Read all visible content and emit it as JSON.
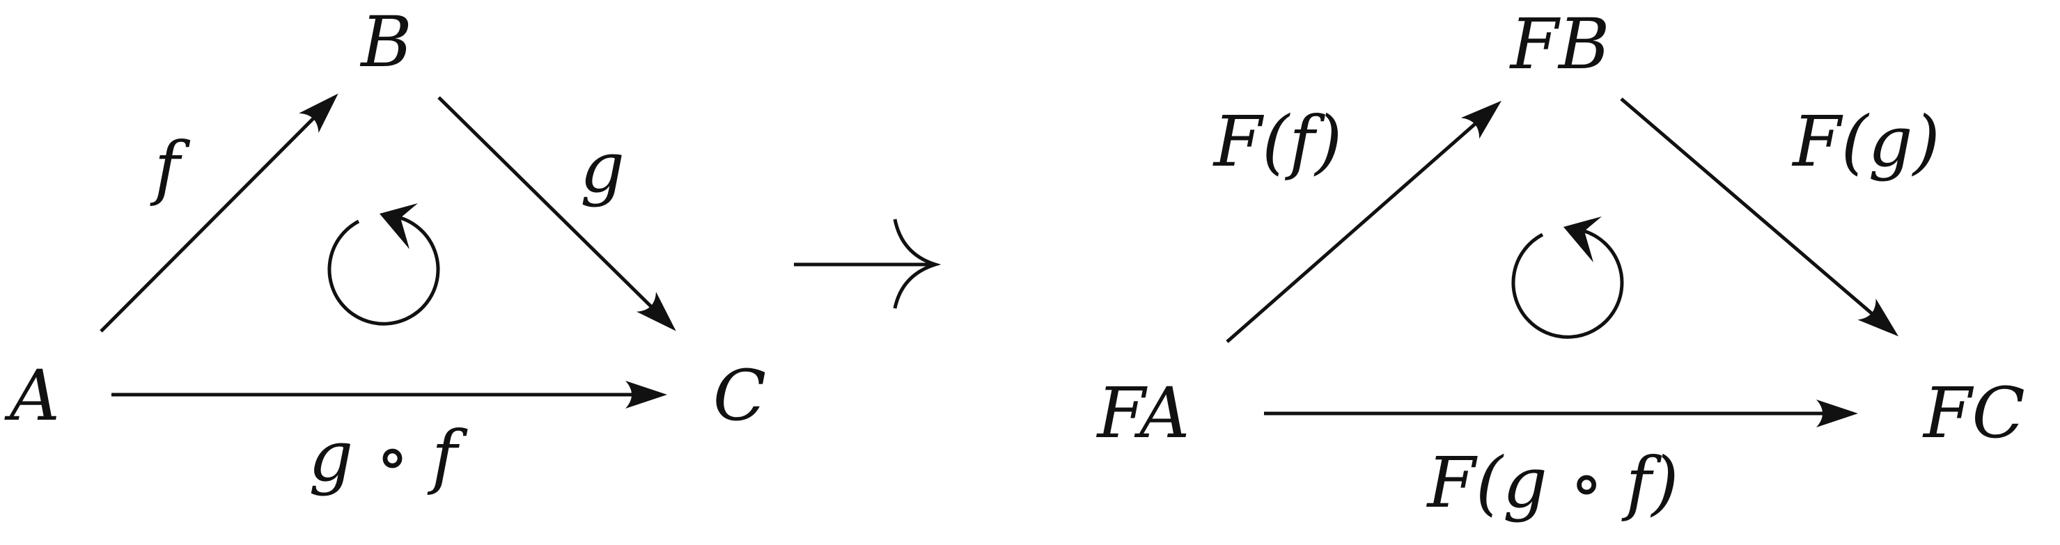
{
  "left_diagram": {
    "objects": {
      "A": "A",
      "B": "B",
      "C": "C"
    },
    "morphisms": {
      "f": "f",
      "g": "g",
      "composite": "g ∘ f"
    }
  },
  "functor_arrow_icon": "long-right-arrow-icon",
  "right_diagram": {
    "objects": {
      "FA": "FA",
      "FB": "FB",
      "FC": "FC"
    },
    "morphisms": {
      "Ff": "F(f)",
      "Fg": "F(g)",
      "Fcomposite": "F(g ∘ f)"
    }
  },
  "commute_icon": "counterclockwise-circle-arrow-icon",
  "colors": {
    "ink": "#111111",
    "background": "#ffffff"
  }
}
